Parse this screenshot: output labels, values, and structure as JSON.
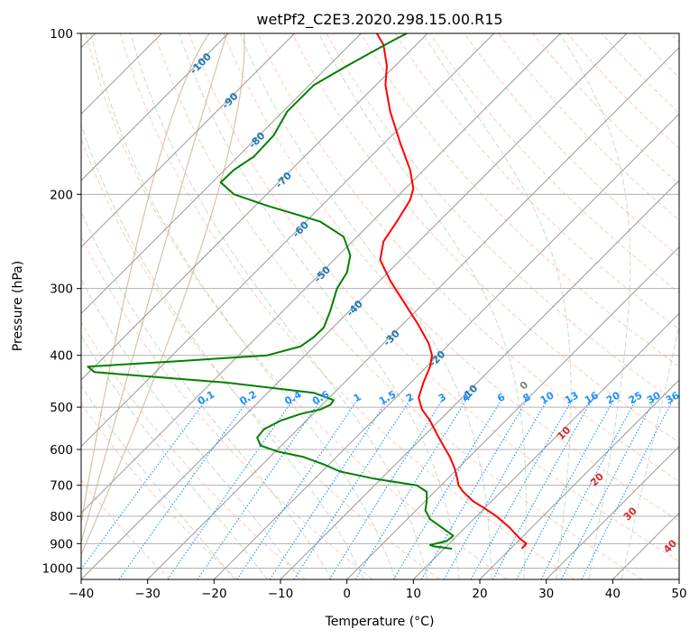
{
  "chart_data": {
    "type": "line",
    "title": "wetPf2_C2E3.2020.298.15.00.R15",
    "xlabel": "Temperature (°C)",
    "ylabel": "Pressure (hPa)",
    "xlim": [
      -40,
      50
    ],
    "ylim": [
      1050,
      100
    ],
    "y_scale": "log",
    "grid": true,
    "x_ticks": [
      -40,
      -30,
      -20,
      -10,
      0,
      10,
      20,
      30,
      40,
      50
    ],
    "x_tick_labels": [
      "−40",
      "−30",
      "−20",
      "−10",
      "0",
      "10",
      "20",
      "30",
      "40",
      "50"
    ],
    "y_ticks": [
      100,
      200,
      300,
      400,
      500,
      600,
      700,
      800,
      900,
      1000
    ],
    "y_tick_labels": [
      "100",
      "200",
      "300",
      "400",
      "500",
      "600",
      "700",
      "800",
      "900",
      "1000"
    ],
    "series": [
      {
        "color": "#ff0000",
        "values": [
          [
            26.3,
            920
          ],
          [
            27.0,
            900
          ],
          [
            26.0,
            880
          ],
          [
            24.5,
            840
          ],
          [
            22.5,
            800
          ],
          [
            20.5,
            770
          ],
          [
            19.0,
            750
          ],
          [
            17.5,
            720
          ],
          [
            16.8,
            700
          ],
          [
            16.6,
            680
          ],
          [
            16.2,
            650
          ],
          [
            15.5,
            620
          ],
          [
            14.5,
            590
          ],
          [
            13.5,
            560
          ],
          [
            12.5,
            530
          ],
          [
            11.3,
            505
          ],
          [
            10.8,
            480
          ],
          [
            11.5,
            450
          ],
          [
            12.5,
            420
          ],
          [
            12.8,
            400
          ],
          [
            12.3,
            380
          ],
          [
            10.7,
            350
          ],
          [
            8.7,
            320
          ],
          [
            6.5,
            290
          ],
          [
            5.0,
            265
          ],
          [
            5.5,
            245
          ],
          [
            7.5,
            225
          ],
          [
            9.5,
            205
          ],
          [
            10.0,
            195
          ],
          [
            9.5,
            180
          ],
          [
            8.0,
            160
          ],
          [
            6.5,
            140
          ],
          [
            5.8,
            125
          ],
          [
            6.0,
            115
          ],
          [
            5.5,
            105
          ],
          [
            4.5,
            100
          ]
        ]
      },
      {
        "color": "#008000",
        "values": [
          [
            15.8,
            920
          ],
          [
            13.0,
            910
          ],
          [
            12.5,
            905
          ],
          [
            15.0,
            890
          ],
          [
            16.0,
            870
          ],
          [
            14.3,
            840
          ],
          [
            12.5,
            810
          ],
          [
            11.8,
            780
          ],
          [
            12.0,
            750
          ],
          [
            12.0,
            720
          ],
          [
            10.5,
            700
          ],
          [
            4.0,
            680
          ],
          [
            -1.0,
            660
          ],
          [
            -3.5,
            640
          ],
          [
            -6.5,
            620
          ],
          [
            -10.5,
            605
          ],
          [
            -13.0,
            590
          ],
          [
            -13.5,
            570
          ],
          [
            -12.5,
            550
          ],
          [
            -10.0,
            530
          ],
          [
            -7.0,
            515
          ],
          [
            -4.0,
            505
          ],
          [
            -2.5,
            495
          ],
          [
            -2.0,
            485
          ],
          [
            -5.0,
            470
          ],
          [
            -18.0,
            450
          ],
          [
            -38.0,
            430
          ],
          [
            -39.0,
            420
          ],
          [
            -25.0,
            410
          ],
          [
            -12.0,
            400
          ],
          [
            -7.0,
            385
          ],
          [
            -5.0,
            370
          ],
          [
            -3.5,
            355
          ],
          [
            -2.5,
            330
          ],
          [
            -1.5,
            300
          ],
          [
            0.0,
            280
          ],
          [
            0.5,
            260
          ],
          [
            -0.5,
            240
          ],
          [
            -4.0,
            225
          ],
          [
            -12.0,
            210
          ],
          [
            -17.0,
            200
          ],
          [
            -19.0,
            190
          ],
          [
            -17.0,
            180
          ],
          [
            -14.0,
            170
          ],
          [
            -11.0,
            155
          ],
          [
            -9.0,
            140
          ],
          [
            -5.0,
            125
          ],
          [
            0.0,
            115
          ],
          [
            4.0,
            108
          ],
          [
            7.0,
            103
          ],
          [
            9.0,
            100
          ]
        ]
      }
    ],
    "dry_adiabat_labels": [
      "-100",
      "-90",
      "-80",
      "-70",
      "-60",
      "-50",
      "-40",
      "-30",
      "-20",
      "-10"
    ],
    "mixing_ratio_labels": [
      "0.1",
      "0.2",
      "0.4",
      "0.6",
      "1",
      "1.5",
      "2",
      "3",
      "4",
      "6",
      "8",
      "10",
      "13",
      "16",
      "20",
      "25",
      "30",
      "36"
    ],
    "moist_adiabat_labels": [
      "0",
      "10",
      "20",
      "30",
      "40"
    ],
    "colors": {
      "temperature": "#ff0000",
      "dewpoint": "#008000",
      "dry_adiabat_label": "#1f77b4",
      "mixing_ratio": "#1e90ff",
      "moist_adiabat_label": "#d62728",
      "zero_label": "#808080",
      "isotherm": "#999999",
      "grid": "#b0b0b0",
      "dry_adiabat_line": "#ffa07a",
      "moist_adiabat_line": "#8fbc8f",
      "curve_line": "#c8a882"
    }
  }
}
